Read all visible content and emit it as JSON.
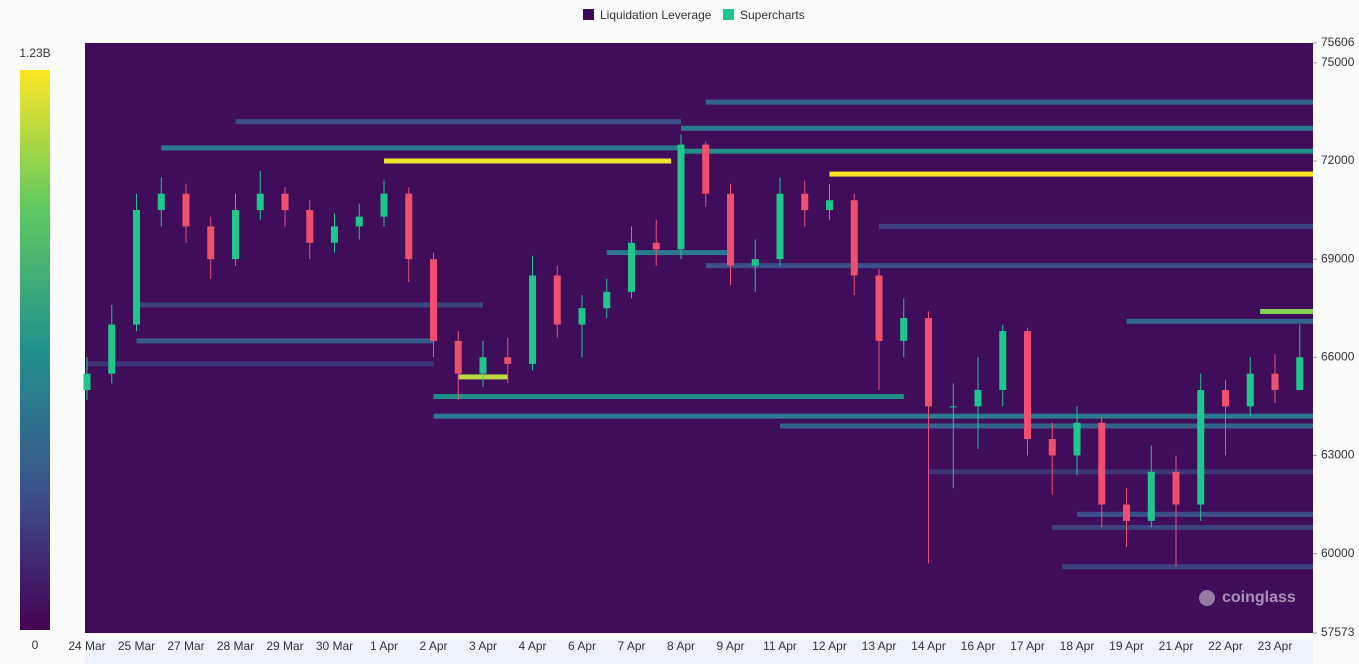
{
  "chart_data": {
    "type": "heatmap",
    "legend": [
      {
        "name": "Liquidation Leverage",
        "color": "#3d0a57"
      },
      {
        "name": "Supercharts",
        "color": "#1ec88d"
      }
    ],
    "watermark": "coinglass",
    "background": "#3f0d59",
    "colormap": [
      "#440154",
      "#3b528b",
      "#21918c",
      "#5ec962",
      "#fde725"
    ],
    "colorbar": {
      "min": 0,
      "max": {
        "value": 1230000000,
        "label": "1.23B"
      }
    },
    "categories": [
      "24 Mar",
      "25 Mar",
      "27 Mar",
      "28 Mar",
      "29 Mar",
      "30 Mar",
      "1 Apr",
      "2 Apr",
      "3 Apr",
      "4 Apr",
      "6 Apr",
      "7 Apr",
      "8 Apr",
      "9 Apr",
      "11 Apr",
      "12 Apr",
      "13 Apr",
      "14 Apr",
      "16 Apr",
      "17 Apr",
      "18 Apr",
      "19 Apr",
      "21 Apr",
      "22 Apr",
      "23 Apr"
    ],
    "ylim": [
      57573,
      75606
    ],
    "yticks": [
      57573,
      60000,
      63000,
      66000,
      69000,
      72000,
      75000,
      75606
    ],
    "heat": [
      {
        "price": 73800,
        "from": 12.5,
        "to": 24.8,
        "value": 400000000
      },
      {
        "price": 73200,
        "from": 3,
        "to": 12,
        "value": 300000000
      },
      {
        "price": 73000,
        "from": 12,
        "to": 24.8,
        "value": 500000000
      },
      {
        "price": 72400,
        "from": 1.5,
        "to": 12,
        "value": 500000000
      },
      {
        "price": 72300,
        "from": 12,
        "to": 24.8,
        "value": 600000000
      },
      {
        "price": 72000,
        "from": 6,
        "to": 11.8,
        "value": 1200000000
      },
      {
        "price": 71600,
        "from": 15,
        "to": 24.8,
        "value": 1230000000
      },
      {
        "price": 70000,
        "from": 16,
        "to": 24.8,
        "value": 250000000
      },
      {
        "price": 69200,
        "from": 10.5,
        "to": 13,
        "value": 500000000
      },
      {
        "price": 68800,
        "from": 12.5,
        "to": 24.8,
        "value": 300000000
      },
      {
        "price": 67600,
        "from": 1,
        "to": 8,
        "value": 250000000
      },
      {
        "price": 67400,
        "from": 23.7,
        "to": 24.8,
        "value": 1000000000
      },
      {
        "price": 67100,
        "from": 21,
        "to": 24.8,
        "value": 400000000
      },
      {
        "price": 66500,
        "from": 1,
        "to": 7,
        "value": 350000000
      },
      {
        "price": 65800,
        "from": 0,
        "to": 7,
        "value": 200000000
      },
      {
        "price": 65400,
        "from": 7.5,
        "to": 8.5,
        "value": 1100000000
      },
      {
        "price": 64800,
        "from": 7,
        "to": 16.5,
        "value": 600000000
      },
      {
        "price": 64200,
        "from": 7,
        "to": 24.8,
        "value": 500000000
      },
      {
        "price": 63900,
        "from": 14,
        "to": 24.8,
        "value": 400000000
      },
      {
        "price": 62500,
        "from": 17,
        "to": 24.8,
        "value": 200000000
      },
      {
        "price": 61200,
        "from": 20,
        "to": 24.8,
        "value": 300000000
      },
      {
        "price": 60800,
        "from": 19.5,
        "to": 24.8,
        "value": 250000000
      },
      {
        "price": 59600,
        "from": 19.7,
        "to": 24.8,
        "value": 250000000
      }
    ],
    "up_color": "#1ec88d",
    "down_color": "#f0506e",
    "candles": {
      "open": [
        65000,
        65500,
        67000,
        70500,
        71000,
        70000,
        69000,
        70500,
        71000,
        70500,
        69500,
        70000,
        70300,
        71000,
        69000,
        66500,
        65500,
        66000,
        65800,
        68500,
        67000,
        67500,
        68000,
        69500,
        69300,
        72500,
        71000,
        68800,
        69000,
        71000,
        70500,
        70800,
        68500,
        66500,
        67200,
        64500,
        64500,
        65000,
        66800,
        63500,
        63000,
        64000,
        61500,
        61000,
        62500,
        61500,
        65000,
        64500,
        65500,
        65000
      ],
      "high": [
        66000,
        67600,
        71000,
        71500,
        71300,
        70300,
        71000,
        71700,
        71200,
        70800,
        70400,
        70700,
        71400,
        71200,
        69200,
        66800,
        66500,
        66600,
        69100,
        68800,
        67900,
        68400,
        70000,
        70200,
        72800,
        72600,
        71300,
        69600,
        71500,
        71400,
        71300,
        71000,
        68700,
        67800,
        67400,
        65200,
        66000,
        67000,
        66900,
        64000,
        64500,
        64200,
        62000,
        63300,
        63000,
        65500,
        65300,
        66000,
        66100,
        67000
      ],
      "low": [
        64700,
        65200,
        66800,
        70000,
        69500,
        68400,
        68800,
        70200,
        70000,
        69000,
        69200,
        69600,
        70000,
        68300,
        66000,
        64700,
        65100,
        65200,
        65600,
        66600,
        66000,
        67200,
        67800,
        68800,
        69000,
        70600,
        68200,
        68000,
        68800,
        70000,
        70200,
        67900,
        65000,
        66000,
        59700,
        62000,
        63200,
        64500,
        63000,
        61800,
        62400,
        60800,
        60200,
        60800,
        59600,
        61000,
        63000,
        64200,
        64600,
        65500
      ],
      "close": [
        65500,
        67000,
        70500,
        71000,
        70000,
        69000,
        70500,
        71000,
        70500,
        69500,
        70000,
        70300,
        71000,
        69000,
        66500,
        65500,
        66000,
        65800,
        68500,
        67000,
        67500,
        68000,
        69500,
        69300,
        72500,
        71000,
        68800,
        69000,
        71000,
        70500,
        70800,
        68500,
        66500,
        67200,
        64500,
        64500,
        65000,
        66800,
        63500,
        63000,
        64000,
        61500,
        61000,
        62500,
        61500,
        65000,
        64500,
        65500,
        65000,
        66000
      ]
    }
  }
}
